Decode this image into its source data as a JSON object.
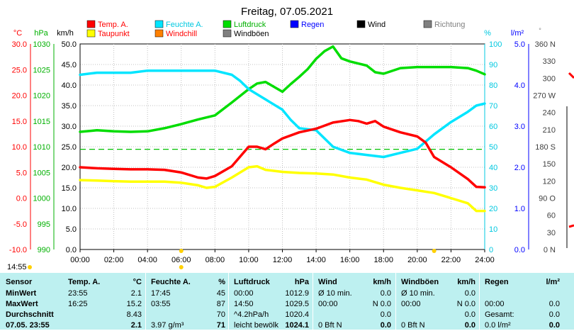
{
  "chart_data": {
    "type": "line",
    "title": "Freitag, 07.05.2021",
    "x_ticks": [
      "00:00",
      "02:00",
      "04:00",
      "06:00",
      "08:00",
      "10:00",
      "12:00",
      "14:00",
      "16:00",
      "18:00",
      "20:00",
      "22:00",
      "24:00"
    ],
    "axes": {
      "temp": {
        "unit": "°C",
        "ticks": [
          "30.0",
          "25.0",
          "20.0",
          "15.0",
          "10.0",
          "5.0",
          "0.0",
          "-5.0",
          "-10.0"
        ],
        "range": [
          -10,
          30
        ]
      },
      "pressure": {
        "unit": "hPa",
        "ticks": [
          "1030",
          "1025",
          "1020",
          "1015",
          "1010",
          "1005",
          "1000",
          "995",
          "990"
        ],
        "range": [
          990,
          1030
        ]
      },
      "wind": {
        "unit": "km/h",
        "ticks": [
          "50.0",
          "45.0",
          "40.0",
          "35.0",
          "30.0",
          "25.0",
          "20.0",
          "15.0",
          "10.0",
          "5.0",
          "0.0"
        ],
        "range": [
          0,
          50
        ]
      },
      "humidity": {
        "unit": "%",
        "ticks": [
          "100",
          "90",
          "80",
          "70",
          "60",
          "50",
          "40",
          "30",
          "20",
          "10",
          "0"
        ],
        "range": [
          0,
          100
        ]
      },
      "rain": {
        "unit": "l/m²",
        "ticks": [
          "5.0",
          "4.0",
          "3.0",
          "2.0",
          "1.0",
          "0.0"
        ],
        "range": [
          0,
          5
        ]
      },
      "direction": {
        "unit": "°",
        "ticks": [
          "360 N",
          "330",
          "300",
          "270 W",
          "240",
          "210",
          "180 S",
          "150",
          "120",
          "90 O",
          "60",
          "30",
          "0 N"
        ],
        "range": [
          0,
          360
        ]
      }
    },
    "legend": [
      {
        "name": "Temp. A.",
        "color": "#ff0000"
      },
      {
        "name": "Feuchte A.",
        "color": "#00e5ff"
      },
      {
        "name": "Luftdruck",
        "color": "#00dd00"
      },
      {
        "name": "Regen",
        "color": "#0000ff"
      },
      {
        "name": "Wind",
        "color": "#000000"
      },
      {
        "name": "Richtung",
        "color": "#808080"
      },
      {
        "name": "Taupunkt",
        "color": "#ffff00"
      },
      {
        "name": "Windchill",
        "color": "#ff8000"
      },
      {
        "name": "Windböen",
        "color": "#808080"
      }
    ],
    "reference_line": {
      "name": "Taupunkt-Linie",
      "temp_value": 9.5,
      "color": "#00c000"
    },
    "series": [
      {
        "name": "Temp. A.",
        "axis": "temp",
        "color": "#ff0000",
        "x": [
          0,
          1,
          2,
          3,
          4,
          5,
          6,
          7,
          7.5,
          8,
          9,
          10,
          10.5,
          11,
          11.5,
          12,
          13,
          14,
          15,
          16,
          16.5,
          17,
          17.5,
          18,
          19,
          20,
          20.5,
          21,
          22,
          23,
          23.5,
          24
        ],
        "y": [
          6.0,
          5.8,
          5.7,
          5.6,
          5.6,
          5.5,
          5.0,
          4.0,
          3.8,
          4.3,
          6.2,
          10.0,
          10.0,
          9.5,
          10.6,
          11.6,
          12.8,
          13.5,
          14.7,
          15.2,
          15.0,
          14.5,
          15.0,
          13.9,
          12.8,
          12.0,
          10.8,
          8.0,
          6.0,
          3.7,
          2.2,
          2.1
        ]
      },
      {
        "name": "Feuchte A.",
        "axis": "humidity",
        "color": "#00e5ff",
        "x": [
          0,
          1,
          2,
          3,
          4,
          5,
          6,
          7,
          8,
          9,
          9.5,
          10,
          11,
          12,
          12.5,
          13,
          14,
          15,
          16,
          17,
          18,
          19,
          20,
          21,
          22,
          23,
          23.5,
          24
        ],
        "y": [
          85,
          86,
          86,
          86,
          87,
          87,
          87,
          87,
          87,
          85,
          82,
          78,
          73,
          68,
          63,
          59,
          58,
          50,
          47,
          46,
          45,
          47,
          49,
          56,
          62,
          67,
          70,
          71
        ]
      },
      {
        "name": "Luftdruck",
        "axis": "pressure",
        "color": "#00dd00",
        "x": [
          0,
          1,
          2,
          3,
          4,
          5,
          6,
          7,
          8,
          9,
          10,
          10.5,
          11,
          12,
          12.5,
          13,
          13.5,
          14,
          14.5,
          15,
          15.5,
          16,
          17,
          17.5,
          18,
          19,
          20,
          21,
          22,
          23,
          23.5,
          24
        ],
        "y": [
          1012.9,
          1013.2,
          1013,
          1012.9,
          1013,
          1013.6,
          1014.4,
          1015.3,
          1016.1,
          1018.6,
          1021.2,
          1022.3,
          1022.6,
          1020.7,
          1022.2,
          1023.6,
          1025.1,
          1027.1,
          1028.6,
          1029.5,
          1027.2,
          1026.6,
          1025.8,
          1024.5,
          1024.2,
          1025.3,
          1025.5,
          1025.5,
          1025.5,
          1025.3,
          1024.8,
          1024.1
        ]
      },
      {
        "name": "Taupunkt",
        "axis": "temp",
        "color": "#ffff00",
        "x": [
          0,
          1,
          2,
          3,
          4,
          5,
          6,
          7,
          7.5,
          8,
          9,
          10,
          10.5,
          11,
          12,
          13,
          14,
          15,
          16,
          17,
          18,
          19,
          20,
          21,
          22,
          23,
          23.5,
          24
        ],
        "y": [
          3.5,
          3.4,
          3.3,
          3.2,
          3.2,
          3.2,
          3.0,
          2.5,
          2.0,
          2.2,
          4.0,
          6.0,
          6.2,
          5.5,
          5.1,
          4.9,
          4.8,
          4.6,
          4.0,
          3.6,
          2.6,
          2.0,
          1.5,
          1.0,
          0.0,
          -1.0,
          -2.5,
          -2.5
        ]
      }
    ]
  },
  "table": {
    "headers": [
      "Sensor",
      "Temp. A.",
      "°C",
      "Feuchte A.",
      "%",
      "Luftdruck",
      "hPa",
      "Wind",
      "km/h",
      "Windböen",
      "km/h",
      "Regen",
      "l/m²"
    ],
    "rows": [
      [
        "MinWert",
        "23:55",
        "2.1",
        "17:45",
        "45",
        "00:00",
        "1012.9",
        "Ø 10 min.",
        "0.0",
        "Ø 10 min.",
        "0.0",
        "",
        ""
      ],
      [
        "MaxWert",
        "16:25",
        "15.2",
        "03:55",
        "87",
        "14:50",
        "1029.5",
        "00:00",
        "N 0.0",
        "00:00",
        "N 0.0",
        "00:00",
        "0.0"
      ],
      [
        "Durchschnitt",
        "",
        "8.43",
        "",
        "70",
        "^4.2hPa/h",
        "1020.4",
        "",
        "0.0",
        "",
        "0.0",
        "Gesamt:",
        "0.0"
      ],
      [
        "07.05. 23:55",
        "",
        "2.1",
        "3.97 g/m³",
        "71",
        "leicht bewölk",
        "1024.1",
        "0 Bft N",
        "0.0",
        "0 Bft N",
        "0.0",
        "0.0 l/m²",
        "0.0"
      ]
    ]
  },
  "time_label": "14:55"
}
